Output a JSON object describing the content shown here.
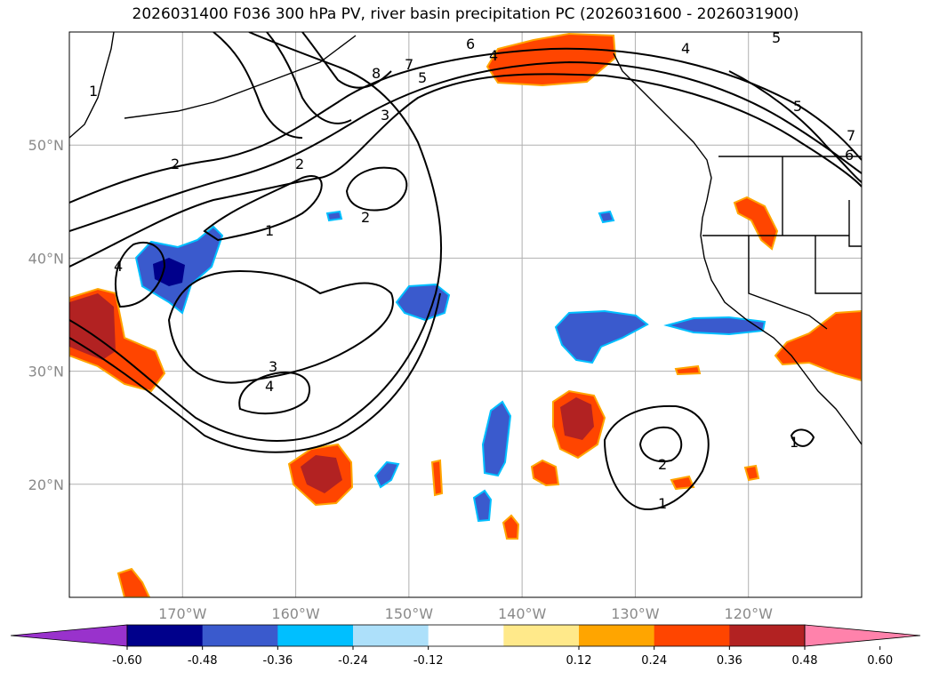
{
  "title": "2026031400 F036 300 hPa PV, river basin precipitation PC (2026031600 - 2026031900)",
  "map": {
    "lat_labels": [
      "50°N",
      "40°N",
      "30°N",
      "20°N"
    ],
    "lon_labels": [
      "170°W",
      "160°W",
      "150°W",
      "140°W",
      "130°W",
      "120°W"
    ],
    "lat_values": [
      50,
      40,
      30,
      20
    ],
    "lon_values": [
      -170,
      -160,
      -150,
      -140,
      -130,
      -120
    ],
    "pv_contour_labels": [
      "1",
      "2",
      "3",
      "4",
      "5",
      "6",
      "7",
      "8"
    ]
  },
  "colorbar": {
    "ticks": [
      "-0.60",
      "-0.48",
      "-0.36",
      "-0.24",
      "-0.12",
      "0.12",
      "0.24",
      "0.36",
      "0.48",
      "0.60"
    ],
    "colors": [
      "#9932CC",
      "#00008B",
      "#3A5ACD",
      "#00BFFF",
      "#ADE0FA",
      "#FFFFFF",
      "#FFE98A",
      "#FFA500",
      "#FF4500",
      "#B22222",
      "#FF82AB"
    ]
  },
  "chart_data": {
    "type": "heatmap",
    "title": "2026031400 F036 300 hPa PV, river basin precipitation PC (2026031600 - 2026031900)",
    "variables": [
      "300 hPa PV (contours)",
      "river basin precipitation PC (shading)"
    ],
    "lat_range": [
      10,
      60
    ],
    "lon_range": [
      -180,
      -110
    ],
    "levels": [
      -0.6,
      -0.48,
      -0.36,
      -0.24,
      -0.12,
      0.12,
      0.24,
      0.36,
      0.48,
      0.6
    ],
    "pv_contour_levels": [
      1,
      2,
      3,
      4,
      5,
      6,
      7,
      8
    ]
  }
}
